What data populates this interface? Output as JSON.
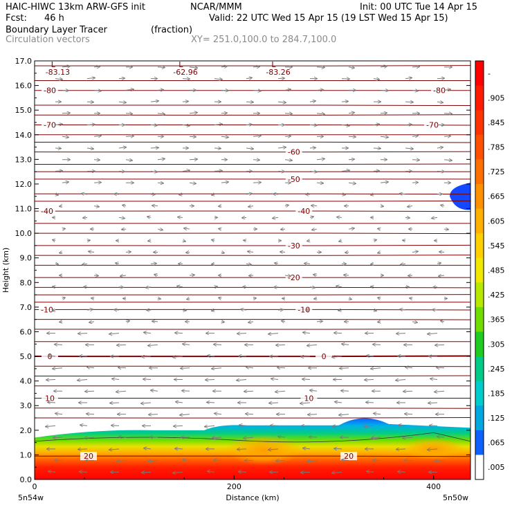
{
  "header": {
    "model": "HAIC-HIWC 13km ARW-GFS init",
    "center": "NCAR/MMM",
    "init": "Init: 00 UTC Tue 14 Apr 15",
    "fcst_label": "Fcst:",
    "fcst_value": "46 h",
    "valid": "Valid: 22 UTC Wed 15 Apr 15 (19 LST Wed 15 Apr 15)",
    "field1_name": "Boundary Layer Tracer",
    "field1_units": "(fraction)",
    "field2_name": "Circulation vectors",
    "xy": "XY= 251.0,100.0 to 284.7,100.0"
  },
  "chart_data": {
    "type": "heatmap",
    "xlabel": "Distance (km)",
    "ylabel": "Height (km)",
    "xlim": [
      0,
      437
    ],
    "ylim": [
      0,
      17
    ],
    "x_ticks": [
      "0",
      "200",
      "400"
    ],
    "y_ticks": [
      "0.0",
      "1.0",
      "2.0",
      "3.0",
      "4.0",
      "5.0",
      "6.0",
      "7.0",
      "8.0",
      "9.0",
      "10.0",
      "11.0",
      "12.0",
      "13.0",
      "14.0",
      "15.0",
      "16.0",
      "17.0"
    ],
    "x_left_label": "5n54w",
    "x_right_label": "5n50w",
    "colorbar": {
      "labels": [
        "-",
        ".905",
        ".845",
        ".785",
        ".725",
        ".665",
        ".605",
        ".545",
        ".485",
        ".425",
        ".365",
        ".305",
        ".245",
        ".185",
        ".125",
        ".065",
        ".005"
      ],
      "colors": [
        "#ff0000",
        "#ff1a00",
        "#ff3300",
        "#ff5000",
        "#ff7000",
        "#ff9000",
        "#ffb000",
        "#ffd000",
        "#f0e800",
        "#b8e800",
        "#70dd00",
        "#20cc20",
        "#00cc88",
        "#00cccc",
        "#00a8e0",
        "#1060ff",
        "#ffffff"
      ]
    },
    "temperature_contours": [
      {
        "label": "-80",
        "y": 15.8
      },
      {
        "label": "-70",
        "y": 14.4
      },
      {
        "label": "-60",
        "y": 13.3
      },
      {
        "label": "-50",
        "y": 12.2
      },
      {
        "label": "-40",
        "y": 10.9
      },
      {
        "label": "-30",
        "y": 9.5
      },
      {
        "label": "-20",
        "y": 8.2
      },
      {
        "label": "-10",
        "y": 6.9
      },
      {
        "label": "0",
        "y": 5.0
      },
      {
        "label": "10",
        "y": 3.3
      },
      {
        "label": "20",
        "y": 0.95
      }
    ],
    "minima": [
      {
        "label": "-83.13",
        "x": 22
      },
      {
        "label": "-62.96",
        "x": 150
      },
      {
        "label": "-83.26",
        "x": 243
      }
    ],
    "extra_contour_heights": [
      16.8,
      16.2,
      15.2,
      14.8,
      14.0,
      13.7,
      12.8,
      12.5,
      11.6,
      11.3,
      10.4,
      10.0,
      9.1,
      8.7,
      7.8,
      7.5,
      7.2,
      6.5,
      6.1,
      5.6,
      4.6,
      4.2,
      3.8,
      2.9,
      2.5
    ],
    "tracer_top_km": 2.2,
    "tracer_bump": {
      "x": 330,
      "top_km": 2.6
    },
    "upper_patch": {
      "x": 432,
      "y_km": 11.5,
      "label": "blue"
    }
  }
}
